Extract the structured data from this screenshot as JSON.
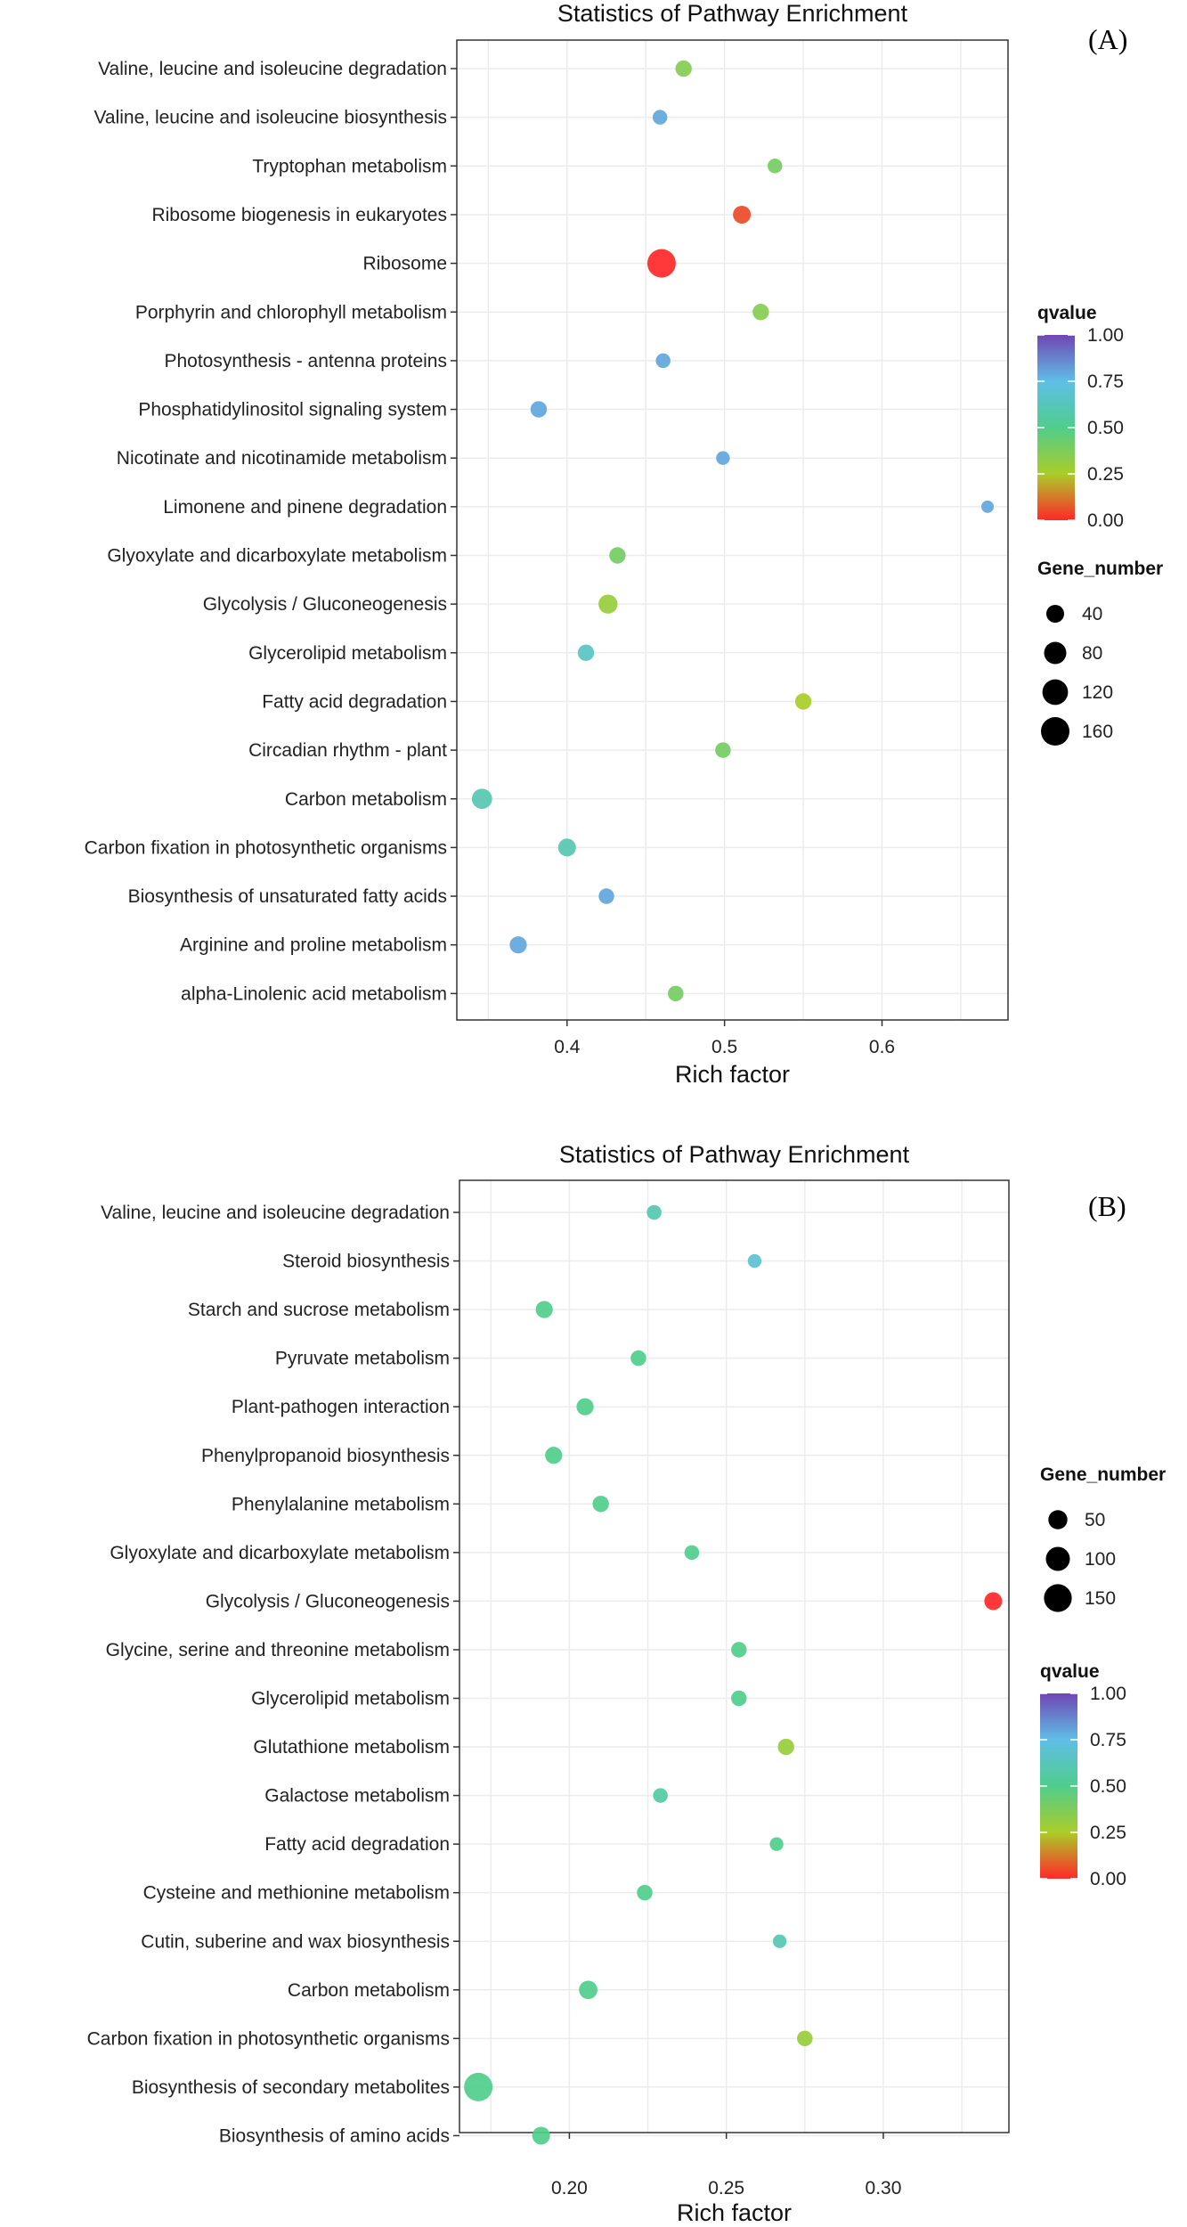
{
  "chart_data": [
    {
      "type": "scatter",
      "panel_label": "(A)",
      "title": "Statistics of Pathway Enrichment",
      "xlabel": "Rich factor",
      "ylabel": "",
      "xlim": [
        0.33,
        0.68
      ],
      "xticks": [
        0.4,
        0.5,
        0.6
      ],
      "xtick_labels": [
        "0.4",
        "0.5",
        "0.6"
      ],
      "legend_order": [
        "qvalue",
        "gene_number"
      ],
      "qvalue_legend": {
        "title": "qvalue",
        "ticks": [
          1.0,
          0.75,
          0.5,
          0.25,
          0.0
        ],
        "tick_labels": [
          "1.00",
          "0.75",
          "0.50",
          "0.25",
          "0.00"
        ]
      },
      "size_legend": {
        "title": "Gene_number",
        "values": [
          40,
          80,
          120,
          160
        ],
        "labels": [
          "40",
          "80",
          "120",
          "160"
        ]
      },
      "pathways": [
        "Valine, leucine and isoleucine degradation",
        "Valine, leucine and isoleucine biosynthesis",
        "Tryptophan metabolism",
        "Ribosome biogenesis in eukaryotes",
        "Ribosome",
        "Porphyrin and chlorophyll metabolism",
        "Photosynthesis - antenna proteins",
        "Phosphatidylinositol signaling system",
        "Nicotinate and nicotinamide metabolism",
        "Limonene and pinene degradation",
        "Glyoxylate and dicarboxylate metabolism",
        "Glycolysis / Gluconeogenesis",
        "Glycerolipid metabolism",
        "Fatty acid degradation",
        "Circadian rhythm - plant",
        "Carbon metabolism",
        "Carbon fixation in photosynthetic organisms",
        "Biosynthesis of unsaturated fatty acids",
        "Arginine and proline metabolism",
        "alpha-Linolenic acid metabolism"
      ],
      "rich_factor": [
        0.474,
        0.459,
        0.532,
        0.511,
        0.46,
        0.523,
        0.461,
        0.382,
        0.499,
        0.667,
        0.432,
        0.426,
        0.412,
        0.55,
        0.499,
        0.346,
        0.4,
        0.425,
        0.369,
        0.469
      ],
      "qvalue": [
        0.35,
        0.8,
        0.4,
        0.05,
        0.0,
        0.35,
        0.8,
        0.8,
        0.8,
        0.8,
        0.4,
        0.3,
        0.65,
        0.25,
        0.4,
        0.6,
        0.6,
        0.8,
        0.8,
        0.4
      ],
      "gene_number": [
        30,
        20,
        20,
        40,
        160,
        30,
        20,
        30,
        15,
        10,
        30,
        50,
        30,
        30,
        25,
        60,
        40,
        25,
        35,
        25
      ]
    },
    {
      "type": "scatter",
      "panel_label": "(B)",
      "title": "Statistics of Pathway Enrichment",
      "xlabel": "Rich factor",
      "ylabel": "",
      "xlim": [
        0.165,
        0.34
      ],
      "xticks": [
        0.2,
        0.25,
        0.3
      ],
      "xtick_labels": [
        "0.20",
        "0.25",
        "0.30"
      ],
      "legend_order": [
        "gene_number",
        "qvalue"
      ],
      "size_legend": {
        "title": "Gene_number",
        "values": [
          50,
          100,
          150
        ],
        "labels": [
          "50",
          "100",
          "150"
        ]
      },
      "qvalue_legend": {
        "title": "qvalue",
        "ticks": [
          1.0,
          0.75,
          0.5,
          0.25,
          0.0
        ],
        "tick_labels": [
          "1.00",
          "0.75",
          "0.50",
          "0.25",
          "0.00"
        ]
      },
      "pathways": [
        "Valine, leucine and isoleucine degradation",
        "Steroid biosynthesis",
        "Starch and sucrose metabolism",
        "Pyruvate metabolism",
        "Plant-pathogen interaction",
        "Phenylpropanoid biosynthesis",
        "Phenylalanine metabolism",
        "Glyoxylate and dicarboxylate metabolism",
        "Glycolysis / Gluconeogenesis",
        "Glycine, serine and threonine metabolism",
        "Glycerolipid metabolism",
        "Glutathione metabolism",
        "Galactose metabolism",
        "Fatty acid degradation",
        "Cysteine and methionine metabolism",
        "Cutin, suberine and wax biosynthesis",
        "Carbon metabolism",
        "Carbon fixation in photosynthetic organisms",
        "Biosynthesis of secondary metabolites",
        "Biosynthesis of amino acids"
      ],
      "rich_factor": [
        0.227,
        0.259,
        0.192,
        0.222,
        0.205,
        0.195,
        0.21,
        0.239,
        0.335,
        0.254,
        0.254,
        0.269,
        0.229,
        0.266,
        0.224,
        0.267,
        0.206,
        0.275,
        0.171,
        0.191
      ],
      "qvalue": [
        0.6,
        0.7,
        0.5,
        0.5,
        0.5,
        0.5,
        0.5,
        0.5,
        0.0,
        0.5,
        0.5,
        0.3,
        0.55,
        0.5,
        0.5,
        0.6,
        0.5,
        0.3,
        0.5,
        0.5
      ],
      "gene_number": [
        20,
        15,
        35,
        25,
        35,
        35,
        30,
        20,
        40,
        25,
        25,
        30,
        20,
        15,
        25,
        15,
        45,
        25,
        160,
        40
      ]
    }
  ]
}
